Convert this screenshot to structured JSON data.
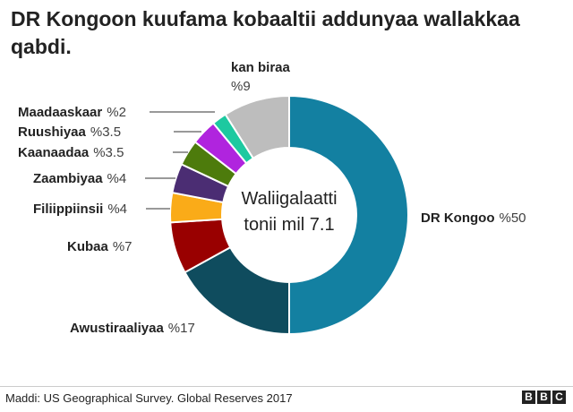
{
  "title": "DR Kongoon kuufama kobaaltii addunyaa wallakkaa qabdi.",
  "center_label": [
    "Waliigalaatti",
    "tonii mil 7.1"
  ],
  "source": "Maddi: US Geographical Survey. Global Reserves 2017",
  "logo": [
    "B",
    "B",
    "C"
  ],
  "chart_data": {
    "type": "pie",
    "donut": true,
    "title": "DR Kongoon kuufama kobaaltii addunyaa wallakkaa qabdi.",
    "center_text": "Waliigalaatti tonii mil 7.1",
    "slices": [
      {
        "name": "DR Kongoo",
        "value": 50,
        "value_label": "%50",
        "color": "#1380A1"
      },
      {
        "name": "Awustiraaliyaa",
        "value": 17,
        "value_label": "%17",
        "color": "#0F4C5E"
      },
      {
        "name": "Kubaa",
        "value": 7,
        "value_label": "%7",
        "color": "#990000"
      },
      {
        "name": "Filiippiinsii",
        "value": 4,
        "value_label": "%4",
        "color": "#FAAB18"
      },
      {
        "name": "Zaambiyaa",
        "value": 4,
        "value_label": "%4",
        "color": "#4B2D73"
      },
      {
        "name": "Kaanaadaa",
        "value": 3.5,
        "value_label": "%3.5",
        "color": "#4D7B0C"
      },
      {
        "name": "Ruushiyaa",
        "value": 3.5,
        "value_label": "%3.5",
        "color": "#B024DE"
      },
      {
        "name": "Maadaaskaar",
        "value": 2,
        "value_label": "%2",
        "color": "#1DC9A0"
      },
      {
        "name": "kan biraa",
        "value": 9,
        "value_label": "%9",
        "color": "#BDBDBD"
      }
    ]
  }
}
